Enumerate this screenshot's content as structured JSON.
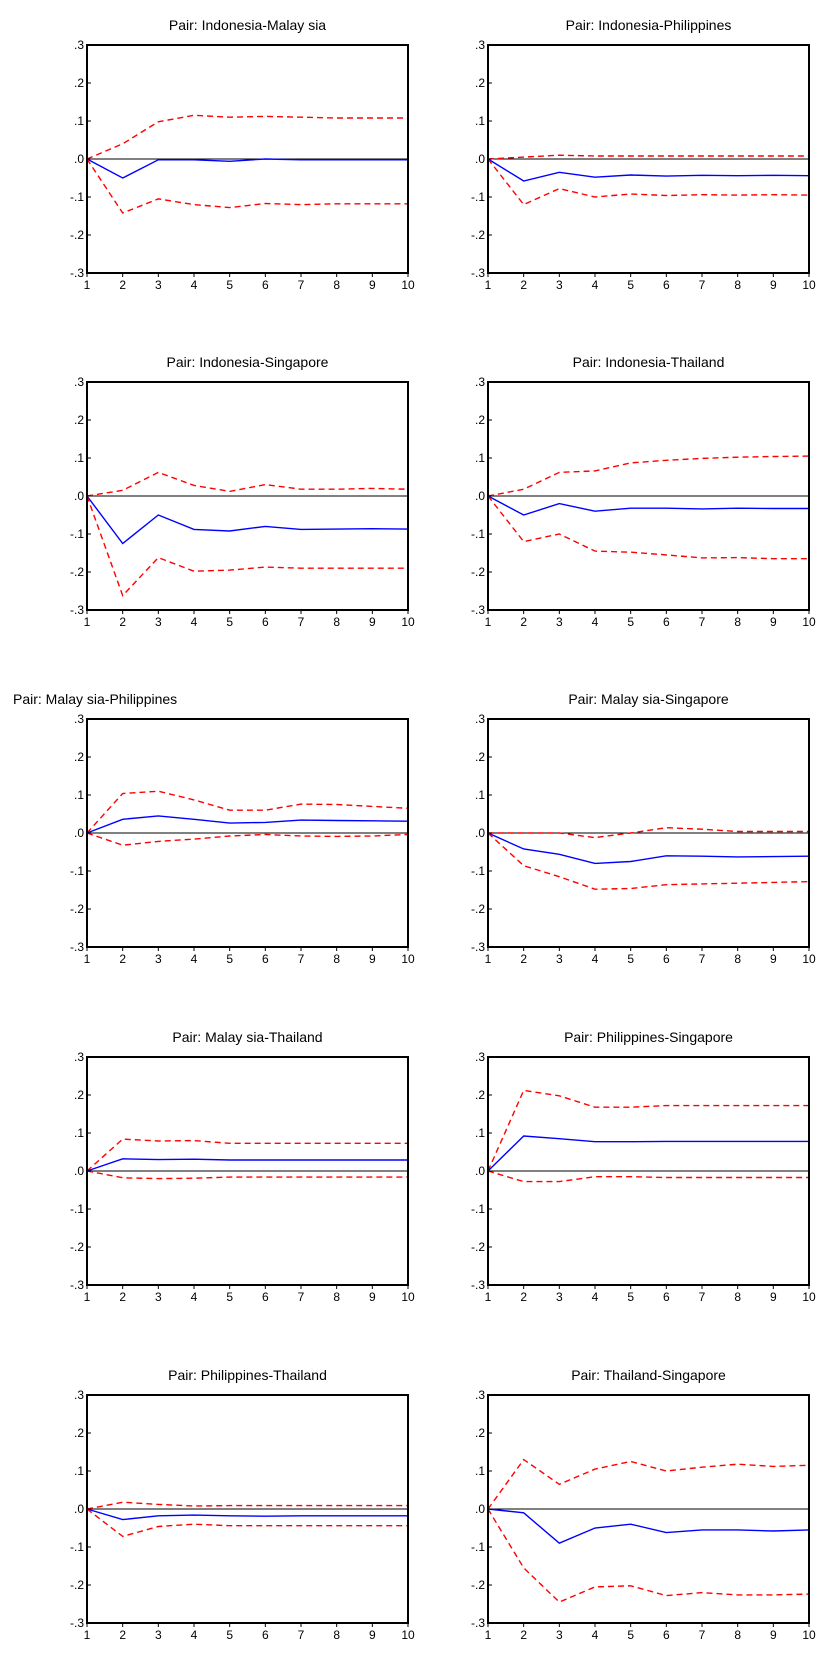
{
  "chart_data": [
    {
      "type": "line",
      "title": "Pair: Indonesia-Malay sia",
      "x": [
        1,
        2,
        3,
        4,
        5,
        6,
        7,
        8,
        9,
        10
      ],
      "ylim": [
        -0.3,
        0.3
      ],
      "yticks": [
        ".3",
        ".2",
        ".1",
        ".0",
        "-.1",
        "-.2",
        "-.3"
      ],
      "xticks": [
        "1",
        "2",
        "3",
        "4",
        "5",
        "6",
        "7",
        "8",
        "9",
        "10"
      ],
      "grid": false,
      "series": [
        {
          "role": "upper",
          "values": [
            0,
            0.04,
            0.098,
            0.115,
            0.11,
            0.112,
            0.11,
            0.108,
            0.108,
            0.108
          ],
          "color": "#ff0000",
          "style": "dashed"
        },
        {
          "role": "estimate",
          "values": [
            0,
            -0.05,
            -0.002,
            -0.002,
            -0.006,
            0,
            -0.002,
            -0.002,
            -0.002,
            -0.002
          ],
          "color": "#0000ff",
          "style": "solid"
        },
        {
          "role": "lower",
          "values": [
            0,
            -0.142,
            -0.105,
            -0.12,
            -0.128,
            -0.117,
            -0.12,
            -0.118,
            -0.118,
            -0.118
          ],
          "color": "#ff0000",
          "style": "dashed"
        }
      ]
    },
    {
      "type": "line",
      "title": "Pair:  Indonesia-Philippines",
      "x": [
        1,
        2,
        3,
        4,
        5,
        6,
        7,
        8,
        9,
        10
      ],
      "ylim": [
        -0.3,
        0.3
      ],
      "yticks": [
        ".3",
        ".2",
        ".1",
        ".0",
        "-.1",
        "-.2",
        "-.3"
      ],
      "xticks": [
        "1",
        "2",
        "3",
        "4",
        "5",
        "6",
        "7",
        "8",
        "9",
        "10"
      ],
      "grid": false,
      "series": [
        {
          "role": "upper",
          "values": [
            0,
            0.005,
            0.01,
            0.008,
            0.008,
            0.008,
            0.008,
            0.008,
            0.008,
            0.008
          ],
          "color": "#ff0000",
          "style": "dashed"
        },
        {
          "role": "estimate",
          "values": [
            0,
            -0.058,
            -0.035,
            -0.048,
            -0.042,
            -0.045,
            -0.043,
            -0.044,
            -0.043,
            -0.044
          ],
          "color": "#0000ff",
          "style": "solid"
        },
        {
          "role": "lower",
          "values": [
            0,
            -0.12,
            -0.078,
            -0.1,
            -0.092,
            -0.096,
            -0.094,
            -0.095,
            -0.094,
            -0.095
          ],
          "color": "#ff0000",
          "style": "dashed"
        }
      ]
    },
    {
      "type": "line",
      "title": "Pair:  Indonesia-Singapore",
      "x": [
        1,
        2,
        3,
        4,
        5,
        6,
        7,
        8,
        9,
        10
      ],
      "ylim": [
        -0.3,
        0.3
      ],
      "yticks": [
        ".3",
        ".2",
        ".1",
        ".0",
        "-.1",
        "-.2",
        "-.3"
      ],
      "xticks": [
        "1",
        "2",
        "3",
        "4",
        "5",
        "6",
        "7",
        "8",
        "9",
        "10"
      ],
      "grid": false,
      "series": [
        {
          "role": "upper",
          "values": [
            0,
            0.015,
            0.062,
            0.028,
            0.012,
            0.03,
            0.018,
            0.018,
            0.02,
            0.018
          ],
          "color": "#ff0000",
          "style": "dashed"
        },
        {
          "role": "estimate",
          "values": [
            0,
            -0.125,
            -0.05,
            -0.088,
            -0.092,
            -0.08,
            -0.088,
            -0.087,
            -0.086,
            -0.087
          ],
          "color": "#0000ff",
          "style": "solid"
        },
        {
          "role": "lower",
          "values": [
            0,
            -0.262,
            -0.162,
            -0.198,
            -0.195,
            -0.187,
            -0.19,
            -0.19,
            -0.19,
            -0.19
          ],
          "color": "#ff0000",
          "style": "dashed"
        }
      ]
    },
    {
      "type": "line",
      "title": "Pair:  Indonesia-Thailand",
      "x": [
        1,
        2,
        3,
        4,
        5,
        6,
        7,
        8,
        9,
        10
      ],
      "ylim": [
        -0.3,
        0.3
      ],
      "yticks": [
        ".3",
        ".2",
        ".1",
        ".0",
        "-.1",
        "-.2",
        "-.3"
      ],
      "xticks": [
        "1",
        "2",
        "3",
        "4",
        "5",
        "6",
        "7",
        "8",
        "9",
        "10"
      ],
      "grid": false,
      "series": [
        {
          "role": "upper",
          "values": [
            0,
            0.018,
            0.062,
            0.066,
            0.087,
            0.094,
            0.099,
            0.102,
            0.104,
            0.105
          ],
          "color": "#ff0000",
          "style": "dashed"
        },
        {
          "role": "estimate",
          "values": [
            0,
            -0.05,
            -0.02,
            -0.04,
            -0.032,
            -0.032,
            -0.034,
            -0.032,
            -0.033,
            -0.033
          ],
          "color": "#0000ff",
          "style": "solid"
        },
        {
          "role": "lower",
          "values": [
            0,
            -0.12,
            -0.1,
            -0.145,
            -0.148,
            -0.155,
            -0.163,
            -0.162,
            -0.165,
            -0.165
          ],
          "color": "#ff0000",
          "style": "dashed"
        }
      ]
    },
    {
      "type": "line",
      "title": "Pair: Malay sia-Philippines",
      "title_align": "left",
      "x": [
        1,
        2,
        3,
        4,
        5,
        6,
        7,
        8,
        9,
        10
      ],
      "ylim": [
        -0.3,
        0.3
      ],
      "yticks": [
        ".3",
        ".2",
        ".1",
        ".0",
        "-.1",
        "-.2",
        "-.3"
      ],
      "xticks": [
        "1",
        "2",
        "3",
        "4",
        "5",
        "6",
        "7",
        "8",
        "9",
        "10"
      ],
      "grid": false,
      "series": [
        {
          "role": "upper",
          "values": [
            0,
            0.104,
            0.11,
            0.087,
            0.06,
            0.06,
            0.076,
            0.075,
            0.07,
            0.065
          ],
          "color": "#ff0000",
          "style": "dashed"
        },
        {
          "role": "estimate",
          "values": [
            0,
            0.036,
            0.045,
            0.036,
            0.026,
            0.028,
            0.034,
            0.033,
            0.032,
            0.031
          ],
          "color": "#0000ff",
          "style": "solid"
        },
        {
          "role": "lower",
          "values": [
            0,
            -0.032,
            -0.022,
            -0.016,
            -0.008,
            -0.004,
            -0.008,
            -0.009,
            -0.008,
            -0.004
          ],
          "color": "#ff0000",
          "style": "dashed"
        }
      ]
    },
    {
      "type": "line",
      "title": "Pair: Malay sia-Singapore",
      "x": [
        1,
        2,
        3,
        4,
        5,
        6,
        7,
        8,
        9,
        10
      ],
      "ylim": [
        -0.3,
        0.3
      ],
      "yticks": [
        ".3",
        ".2",
        ".1",
        ".0",
        "-.1",
        "-.2",
        "-.3"
      ],
      "xticks": [
        "1",
        "2",
        "3",
        "4",
        "5",
        "6",
        "7",
        "8",
        "9",
        "10"
      ],
      "grid": false,
      "series": [
        {
          "role": "upper",
          "values": [
            0,
            0,
            0,
            -0.012,
            0,
            0.014,
            0.01,
            0.004,
            0.004,
            0.004
          ],
          "color": "#ff0000",
          "style": "dashed"
        },
        {
          "role": "estimate",
          "values": [
            0,
            -0.042,
            -0.056,
            -0.08,
            -0.075,
            -0.06,
            -0.061,
            -0.063,
            -0.062,
            -0.061
          ],
          "color": "#0000ff",
          "style": "solid"
        },
        {
          "role": "lower",
          "values": [
            0,
            -0.086,
            -0.115,
            -0.148,
            -0.146,
            -0.136,
            -0.134,
            -0.132,
            -0.13,
            -0.128
          ],
          "color": "#ff0000",
          "style": "dashed"
        }
      ]
    },
    {
      "type": "line",
      "title": "Pair: Malay sia-Thailand",
      "x": [
        1,
        2,
        3,
        4,
        5,
        6,
        7,
        8,
        9,
        10
      ],
      "ylim": [
        -0.3,
        0.3
      ],
      "yticks": [
        ".3",
        ".2",
        ".1",
        ".0",
        "-.1",
        "-.2",
        "-.3"
      ],
      "xticks": [
        "1",
        "2",
        "3",
        "4",
        "5",
        "6",
        "7",
        "8",
        "9",
        "10"
      ],
      "grid": false,
      "series": [
        {
          "role": "upper",
          "values": [
            0,
            0.084,
            0.079,
            0.08,
            0.073,
            0.073,
            0.073,
            0.073,
            0.073,
            0.073
          ],
          "color": "#ff0000",
          "style": "dashed"
        },
        {
          "role": "estimate",
          "values": [
            0,
            0.032,
            0.03,
            0.031,
            0.029,
            0.029,
            0.029,
            0.029,
            0.029,
            0.029
          ],
          "color": "#0000ff",
          "style": "solid"
        },
        {
          "role": "lower",
          "values": [
            0,
            -0.018,
            -0.02,
            -0.019,
            -0.016,
            -0.016,
            -0.016,
            -0.016,
            -0.016,
            -0.016
          ],
          "color": "#ff0000",
          "style": "dashed"
        }
      ]
    },
    {
      "type": "line",
      "title": "Pair:  Philippines-Singapore",
      "x": [
        1,
        2,
        3,
        4,
        5,
        6,
        7,
        8,
        9,
        10
      ],
      "ylim": [
        -0.3,
        0.3
      ],
      "yticks": [
        ".3",
        ".2",
        ".1",
        ".0",
        "-.1",
        "-.2",
        "-.3"
      ],
      "xticks": [
        "1",
        "2",
        "3",
        "4",
        "5",
        "6",
        "7",
        "8",
        "9",
        "10"
      ],
      "grid": false,
      "series": [
        {
          "role": "upper",
          "values": [
            0,
            0.212,
            0.198,
            0.168,
            0.168,
            0.172,
            0.172,
            0.172,
            0.172,
            0.172
          ],
          "color": "#ff0000",
          "style": "dashed"
        },
        {
          "role": "estimate",
          "values": [
            0,
            0.092,
            0.085,
            0.077,
            0.077,
            0.078,
            0.078,
            0.078,
            0.078,
            0.078
          ],
          "color": "#0000ff",
          "style": "solid"
        },
        {
          "role": "lower",
          "values": [
            0,
            -0.028,
            -0.028,
            -0.015,
            -0.015,
            -0.017,
            -0.017,
            -0.017,
            -0.017,
            -0.017
          ],
          "color": "#ff0000",
          "style": "dashed"
        }
      ]
    },
    {
      "type": "line",
      "title": "Pair:  Philippines-Thailand",
      "x": [
        1,
        2,
        3,
        4,
        5,
        6,
        7,
        8,
        9,
        10
      ],
      "ylim": [
        -0.3,
        0.3
      ],
      "yticks": [
        ".3",
        ".2",
        ".1",
        ".0",
        "-.1",
        "-.2",
        "-.3"
      ],
      "xticks": [
        "1",
        "2",
        "3",
        "4",
        "5",
        "6",
        "7",
        "8",
        "9",
        "10"
      ],
      "grid": false,
      "series": [
        {
          "role": "upper",
          "values": [
            0,
            0.018,
            0.012,
            0.008,
            0.009,
            0.009,
            0.009,
            0.009,
            0.009,
            0.009
          ],
          "color": "#ff0000",
          "style": "dashed"
        },
        {
          "role": "estimate",
          "values": [
            0,
            -0.028,
            -0.018,
            -0.016,
            -0.018,
            -0.019,
            -0.018,
            -0.018,
            -0.018,
            -0.018
          ],
          "color": "#0000ff",
          "style": "solid"
        },
        {
          "role": "lower",
          "values": [
            0,
            -0.072,
            -0.046,
            -0.04,
            -0.044,
            -0.044,
            -0.044,
            -0.044,
            -0.044,
            -0.044
          ],
          "color": "#ff0000",
          "style": "dashed"
        }
      ]
    },
    {
      "type": "line",
      "title": "Pair:  Thailand-Singapore",
      "x": [
        1,
        2,
        3,
        4,
        5,
        6,
        7,
        8,
        9,
        10
      ],
      "ylim": [
        -0.3,
        0.3
      ],
      "yticks": [
        ".3",
        ".2",
        ".1",
        ".0",
        "-.1",
        "-.2",
        "-.3"
      ],
      "xticks": [
        "1",
        "2",
        "3",
        "4",
        "5",
        "6",
        "7",
        "8",
        "9",
        "10"
      ],
      "grid": false,
      "series": [
        {
          "role": "upper",
          "values": [
            0,
            0.13,
            0.065,
            0.105,
            0.125,
            0.1,
            0.11,
            0.118,
            0.112,
            0.115
          ],
          "color": "#ff0000",
          "style": "dashed"
        },
        {
          "role": "estimate",
          "values": [
            0,
            -0.01,
            -0.09,
            -0.05,
            -0.04,
            -0.062,
            -0.055,
            -0.055,
            -0.058,
            -0.055
          ],
          "color": "#0000ff",
          "style": "solid"
        },
        {
          "role": "lower",
          "values": [
            0,
            -0.155,
            -0.245,
            -0.205,
            -0.202,
            -0.228,
            -0.22,
            -0.226,
            -0.226,
            -0.224
          ],
          "color": "#ff0000",
          "style": "dashed"
        }
      ]
    }
  ]
}
